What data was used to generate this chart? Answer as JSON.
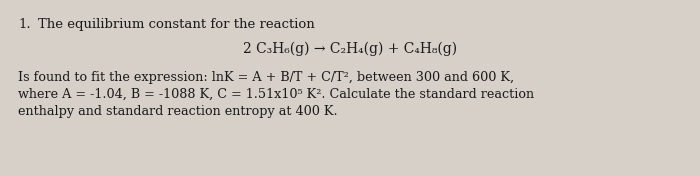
{
  "background_color": "#d6d0c8",
  "number": "1.",
  "title_line": "The equilibrium constant for the reaction",
  "reaction": "2 C₃H₆(g) → C₂H₄(g) + C₄H₈(g)",
  "body_line1": "Is found to fit the expression: lnK = A + B/T + C/T², between 300 and 600 K,",
  "body_line2": "where A = -1.04, B = -1088 K, C = 1.51x10⁵ K². Calculate the standard reaction",
  "body_line3": "enthalpy and standard reaction entropy at 400 K.",
  "text_color": "#1a1a1a",
  "font_size_title": 9.5,
  "font_size_reaction": 10.0,
  "font_size_body": 9.2
}
